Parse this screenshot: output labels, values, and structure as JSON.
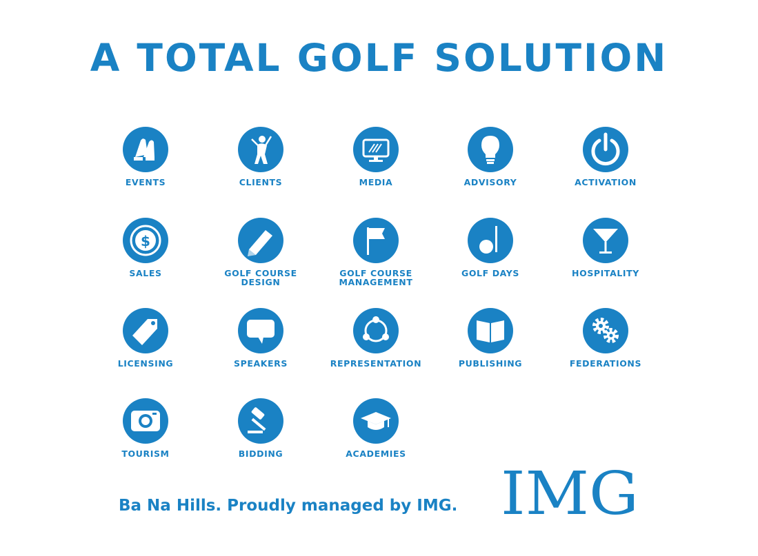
{
  "title": "A TOTAL GOLF SOLUTION",
  "accent_color": "#1a82c4",
  "services": [
    {
      "label": "EVENTS",
      "icon": "clapping-hands-icon"
    },
    {
      "label": "CLIENTS",
      "icon": "golfer-icon"
    },
    {
      "label": "MEDIA",
      "icon": "monitor-icon"
    },
    {
      "label": "ADVISORY",
      "icon": "lightbulb-icon"
    },
    {
      "label": "ACTIVATION",
      "icon": "power-icon"
    },
    {
      "label": "SALES",
      "icon": "dollar-coin-icon"
    },
    {
      "label": "GOLF COURSE\nDESIGN",
      "icon": "pencil-icon"
    },
    {
      "label": "GOLF COURSE\nMANAGEMENT",
      "icon": "flag-icon"
    },
    {
      "label": "GOLF DAYS",
      "icon": "golf-ball-icon"
    },
    {
      "label": "HOSPITALITY",
      "icon": "cocktail-glass-icon"
    },
    {
      "label": "LICENSING",
      "icon": "tag-icon"
    },
    {
      "label": "SPEAKERS",
      "icon": "speech-bubble-icon"
    },
    {
      "label": "REPRESENTATION",
      "icon": "network-people-icon"
    },
    {
      "label": "PUBLISHING",
      "icon": "open-book-icon"
    },
    {
      "label": "FEDERATIONS",
      "icon": "gears-icon"
    },
    {
      "label": "TOURISM",
      "icon": "camera-icon"
    },
    {
      "label": "BIDDING",
      "icon": "gavel-icon"
    },
    {
      "label": "ACADEMIES",
      "icon": "graduation-cap-icon"
    }
  ],
  "footer": {
    "text": "Ba Na Hills. Proudly managed by IMG.",
    "logo": "IMG"
  }
}
